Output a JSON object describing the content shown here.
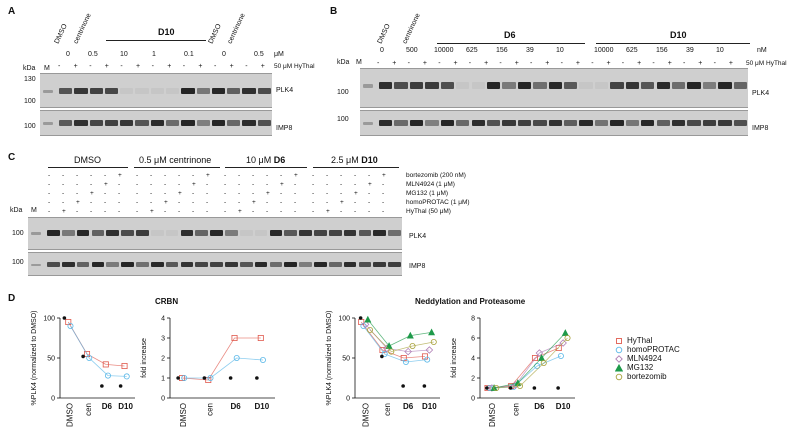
{
  "panels": {
    "A": {
      "label": "A",
      "lane_labels": [
        "DMSO",
        "centrinone"
      ],
      "lane_labels_right": [
        "DMSO",
        "centrinone"
      ],
      "group": "D10",
      "conc": [
        "0",
        "0.5",
        "10",
        "1",
        "0.1",
        "0",
        "0.5"
      ],
      "conc_unit": "μM",
      "minus": "-",
      "plus": "+",
      "hythal": "50 μM HyThal",
      "kda": "kDa",
      "marker": "M",
      "mw": [
        "130",
        "100",
        "100"
      ],
      "blots": [
        "PLK4",
        "IMP8"
      ]
    },
    "B": {
      "label": "B",
      "lane_labels": [
        "DMSO",
        "centrinone"
      ],
      "groups": [
        "D6",
        "D10"
      ],
      "conc": [
        "0",
        "500",
        "10000",
        "625",
        "156",
        "39",
        "10",
        "10000",
        "625",
        "156",
        "39",
        "10"
      ],
      "conc_unit": "nM",
      "hythal": "50 μM HyThal",
      "kda": "kDa",
      "marker": "M",
      "mw": [
        "100",
        "100"
      ],
      "blots": [
        "PLK4",
        "IMP8"
      ]
    },
    "C": {
      "label": "C",
      "groups": [
        "DMSO",
        "0.5 μM centrinone",
        "10 μM ",
        "D6",
        "2.5 μM ",
        "D10"
      ],
      "treatments": [
        "bortezomib (200 nM)",
        "MLN4924 (1 μM)",
        "MG132 (1 μM)",
        "homoPROTAC (1 μM)",
        "HyThal (50 μM)"
      ],
      "kda": "kDa",
      "marker": "M",
      "mw": [
        "100",
        "100"
      ],
      "blots": [
        "PLK4",
        "IMP8"
      ]
    },
    "D": {
      "label": "D",
      "titles": [
        "CRBN",
        "Neddylation and Proteasome"
      ],
      "ylabel_pct": "%PLK4 (normalized to DMSO)",
      "ylabel_fold": "fold increase",
      "categories": [
        "DMSO",
        "cen",
        "D6",
        "D10"
      ],
      "pct_ticks": [
        "0",
        "50",
        "100"
      ],
      "fold_ticks_left": [
        "0",
        "1",
        "2",
        "3",
        "4"
      ],
      "fold_ticks_right": [
        "0",
        "2",
        "4",
        "6",
        "8"
      ],
      "legend": [
        "HyThal",
        "homoPROTAC",
        "MLN4924",
        "MG132",
        "bortezomib"
      ]
    }
  },
  "colors": {
    "hythal": "#e05a4e",
    "homoprotac": "#5bb8e8",
    "mln4924": "#b07fb6",
    "mg132": "#1e9a4a",
    "bortezomib": "#a7a13a"
  },
  "chart_data": [
    {
      "type": "scatter",
      "title": "CRBN",
      "ylabel": "%PLK4 (normalized to DMSO)",
      "categories": [
        "DMSO",
        "cen",
        "D6",
        "D10"
      ],
      "ylim": [
        0,
        100
      ],
      "series": [
        {
          "name": "HyThal",
          "values": [
            95,
            55,
            42,
            40
          ]
        },
        {
          "name": "homoPROTAC",
          "values": [
            90,
            50,
            28,
            27
          ]
        }
      ]
    },
    {
      "type": "scatter",
      "title": "CRBN",
      "ylabel": "fold increase",
      "categories": [
        "DMSO",
        "cen",
        "D6",
        "D10"
      ],
      "ylim": [
        0,
        4
      ],
      "series": [
        {
          "name": "HyThal",
          "values": [
            1.0,
            0.9,
            3.0,
            3.0
          ]
        },
        {
          "name": "homoPROTAC",
          "values": [
            1.0,
            1.0,
            2.0,
            1.9
          ]
        }
      ]
    },
    {
      "type": "scatter",
      "title": "Neddylation and Proteasome",
      "ylabel": "%PLK4 (normalized to DMSO)",
      "categories": [
        "DMSO",
        "cen",
        "D6",
        "D10"
      ],
      "ylim": [
        0,
        100
      ],
      "series": [
        {
          "name": "HyThal",
          "values": [
            95,
            60,
            50,
            52
          ]
        },
        {
          "name": "homoPROTAC",
          "values": [
            90,
            55,
            45,
            48
          ]
        },
        {
          "name": "MLN4924",
          "values": [
            92,
            62,
            58,
            60
          ]
        },
        {
          "name": "MG132",
          "values": [
            98,
            65,
            78,
            82
          ]
        },
        {
          "name": "bortezomib",
          "values": [
            85,
            58,
            65,
            70
          ]
        }
      ]
    },
    {
      "type": "scatter",
      "title": "Neddylation and Proteasome",
      "ylabel": "fold increase",
      "categories": [
        "DMSO",
        "cen",
        "D6",
        "D10"
      ],
      "ylim": [
        0,
        8
      ],
      "series": [
        {
          "name": "HyThal",
          "values": [
            1.0,
            1.2,
            4.0,
            5.0
          ]
        },
        {
          "name": "homoPROTAC",
          "values": [
            1.0,
            1.1,
            3.2,
            4.2
          ]
        },
        {
          "name": "MLN4924",
          "values": [
            1.0,
            1.3,
            4.5,
            5.5
          ]
        },
        {
          "name": "MG132",
          "values": [
            1.0,
            1.5,
            4.0,
            6.5
          ]
        },
        {
          "name": "bortezomib",
          "values": [
            1.0,
            1.2,
            3.5,
            6.0
          ]
        }
      ]
    }
  ]
}
